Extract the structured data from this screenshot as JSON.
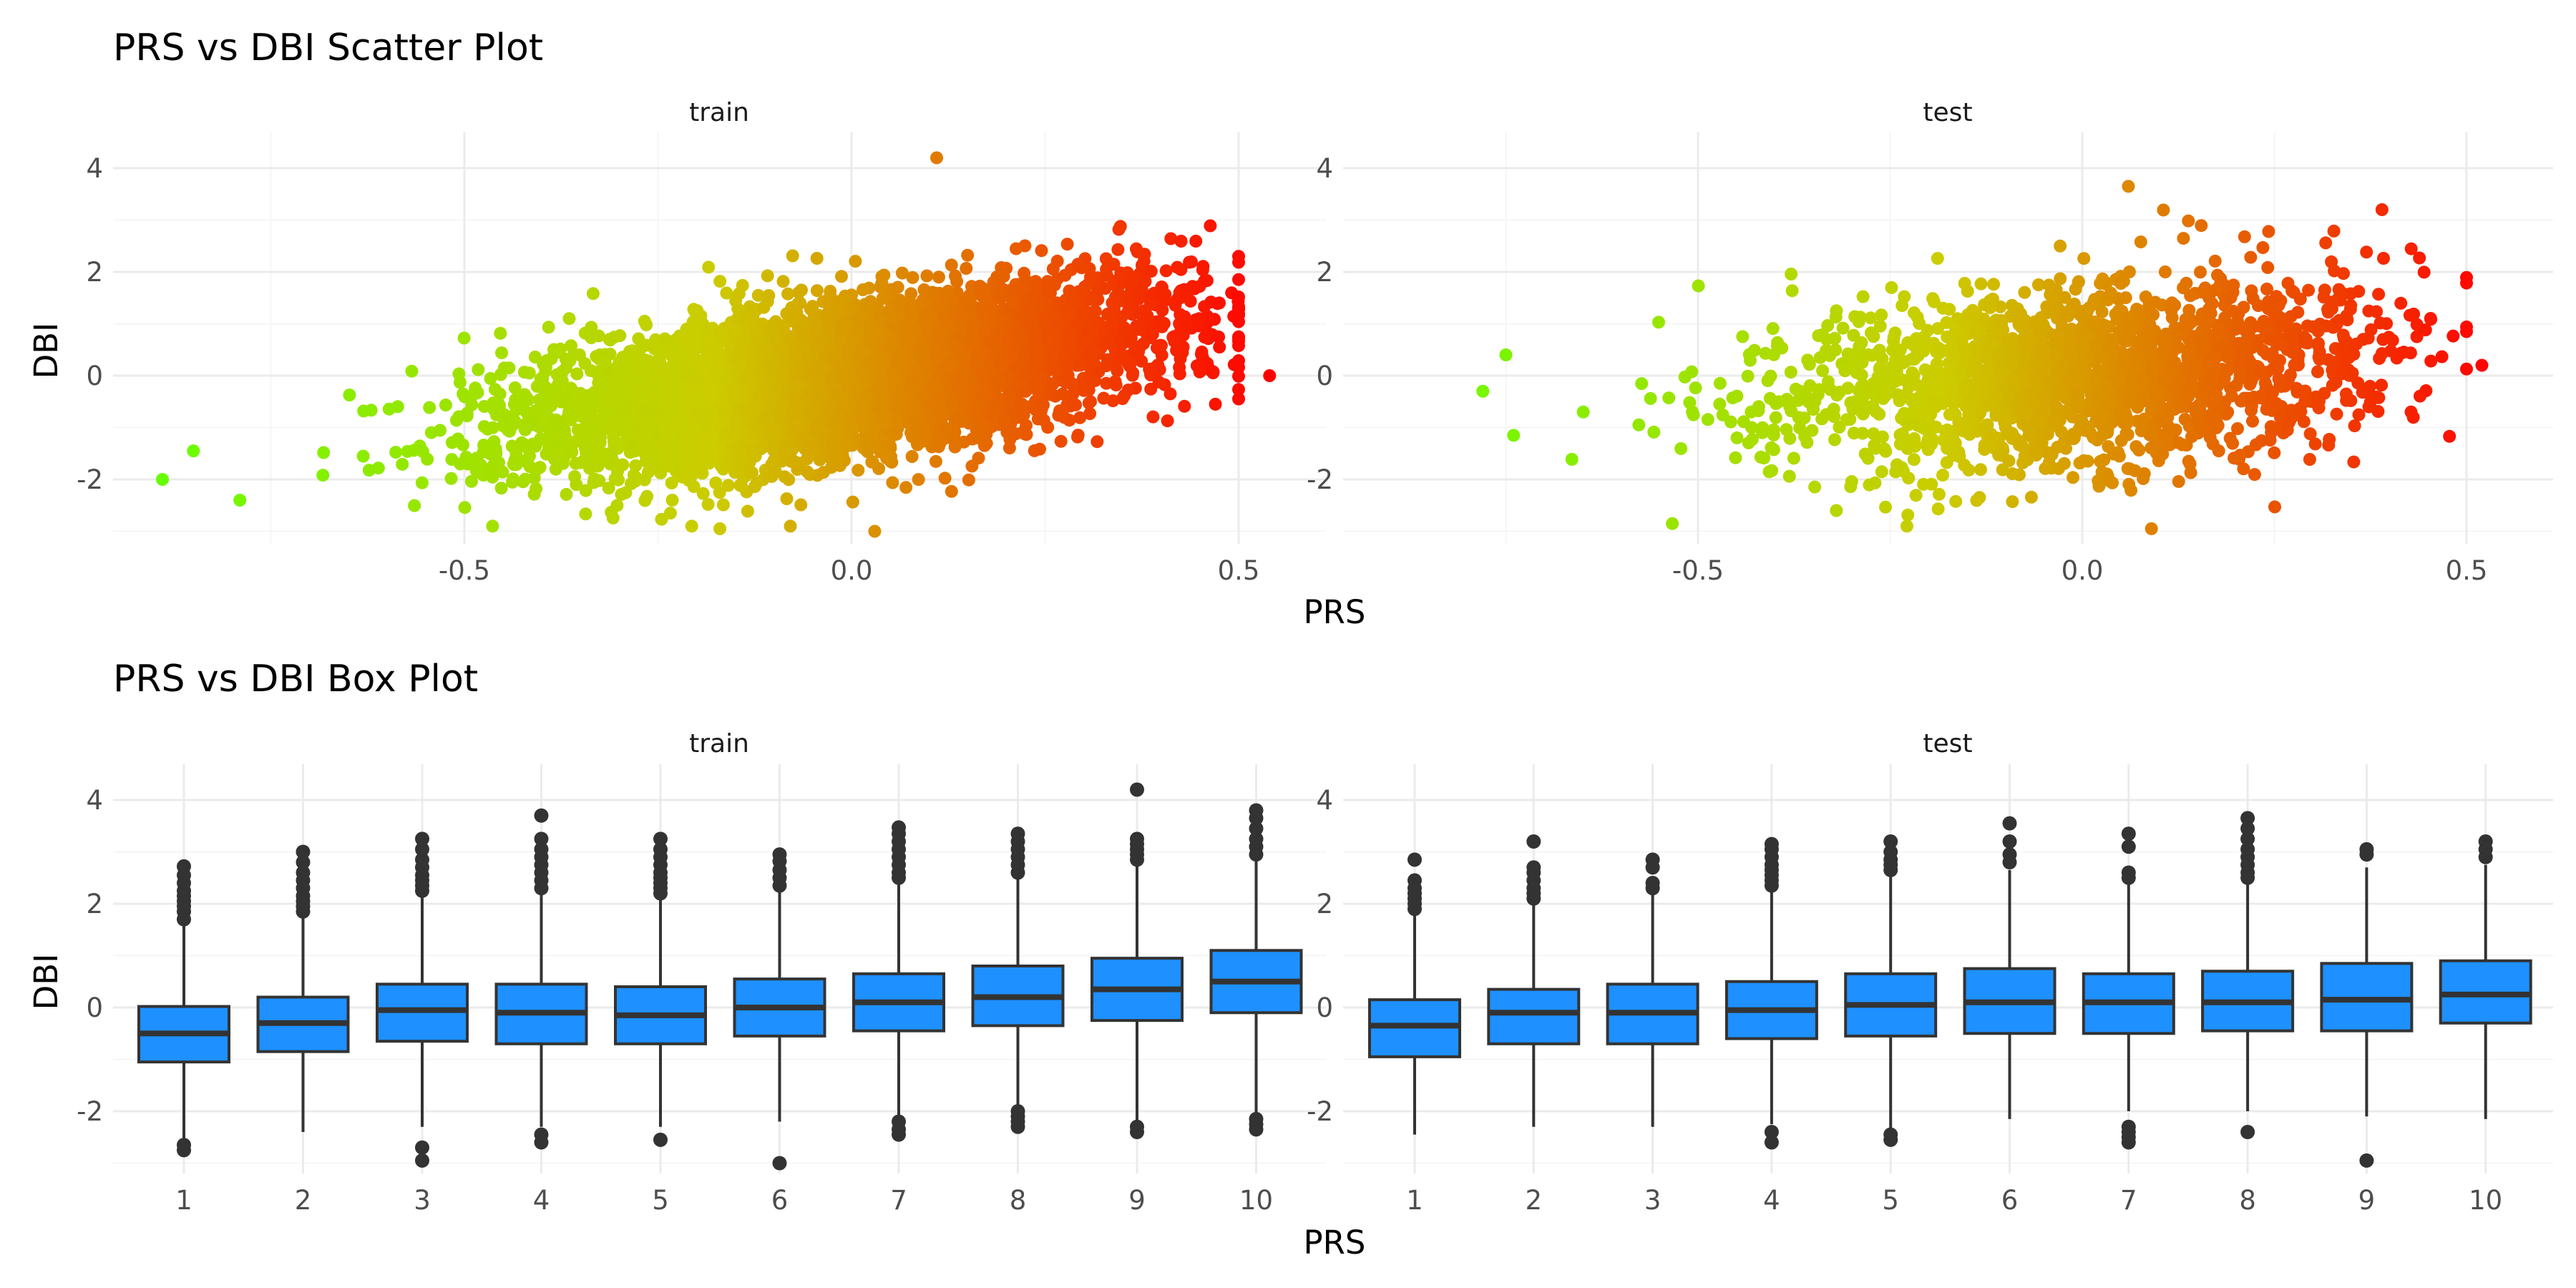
{
  "colors": {
    "low": "#66ff00",
    "mid": "#cccc00",
    "high": "#ff0000",
    "box_fill": "#1e90ff",
    "box_line": "#333333"
  },
  "chart_data": [
    {
      "type": "scatter",
      "title": "PRS vs DBI Scatter Plot",
      "xlabel": "PRS",
      "ylabel": "DBI",
      "xlim": [
        -0.95,
        0.62
      ],
      "ylim": [
        -3.4,
        4.6
      ],
      "xticks": [
        -0.5,
        0.0,
        0.5
      ],
      "xtick_labels": [
        "-0.5",
        "0.0",
        "0.5"
      ],
      "yticks": [
        -2,
        0,
        2,
        4
      ],
      "ytick_labels": [
        "-2",
        "0",
        "2",
        "4"
      ],
      "grid": true,
      "legend": "none",
      "color_by": "PRS",
      "panels": [
        {
          "name": "train",
          "approx_points": 5000,
          "x_mean": 0.0,
          "x_sd": 0.21,
          "slope": 2.2,
          "resid_sd": 0.75,
          "extremes": [
            [
              -0.89,
              -2.0
            ],
            [
              -0.85,
              -1.45
            ],
            [
              -0.79,
              -2.4
            ],
            [
              0.54,
              0.0
            ],
            [
              0.5,
              2.3
            ],
            [
              0.11,
              4.2
            ],
            [
              0.03,
              -3.0
            ],
            [
              -0.17,
              -2.95
            ],
            [
              0.47,
              -0.55
            ]
          ]
        },
        {
          "name": "test",
          "approx_points": 2000,
          "x_mean": 0.0,
          "x_sd": 0.2,
          "slope": 1.2,
          "resid_sd": 0.85,
          "extremes": [
            [
              -0.78,
              -0.3
            ],
            [
              -0.75,
              0.4
            ],
            [
              -0.74,
              -1.15
            ],
            [
              0.52,
              0.2
            ],
            [
              0.5,
              0.85
            ],
            [
              0.39,
              3.2
            ],
            [
              0.06,
              3.65
            ],
            [
              0.09,
              -2.95
            ],
            [
              -0.32,
              -2.6
            ]
          ]
        }
      ]
    },
    {
      "type": "box",
      "title": "PRS vs DBI Box Plot",
      "xlabel": "PRS",
      "ylabel": "DBI",
      "categories": [
        "1",
        "2",
        "3",
        "4",
        "5",
        "6",
        "7",
        "8",
        "9",
        "10"
      ],
      "ylim": [
        -3.4,
        4.6
      ],
      "yticks": [
        -2,
        0,
        2,
        4
      ],
      "ytick_labels": [
        "-2",
        "0",
        "2",
        "4"
      ],
      "grid": true,
      "panels": [
        {
          "name": "train",
          "boxes": [
            {
              "q1": -1.05,
              "median": -0.5,
              "q3": 0.02,
              "lo": -2.6,
              "hi": 1.6,
              "outliers": [
                -2.65,
                -2.75,
                1.7,
                1.85,
                1.95,
                2.05,
                2.15,
                2.25,
                2.4,
                2.55,
                2.72
              ]
            },
            {
              "q1": -0.85,
              "median": -0.3,
              "q3": 0.2,
              "lo": -2.4,
              "hi": 1.75,
              "outliers": [
                1.85,
                1.95,
                2.05,
                2.15,
                2.3,
                2.45,
                2.6,
                2.8,
                3.0
              ]
            },
            {
              "q1": -0.65,
              "median": -0.05,
              "q3": 0.45,
              "lo": -2.3,
              "hi": 2.2,
              "outliers": [
                -2.7,
                -2.95,
                2.25,
                2.35,
                2.45,
                2.55,
                2.7,
                2.85,
                3.05,
                3.25
              ]
            },
            {
              "q1": -0.7,
              "median": -0.1,
              "q3": 0.45,
              "lo": -2.3,
              "hi": 2.25,
              "outliers": [
                -2.45,
                -2.6,
                2.3,
                2.45,
                2.6,
                2.75,
                2.9,
                3.05,
                3.25,
                3.7
              ]
            },
            {
              "q1": -0.7,
              "median": -0.15,
              "q3": 0.4,
              "lo": -2.3,
              "hi": 2.1,
              "outliers": [
                -2.55,
                2.2,
                2.3,
                2.4,
                2.5,
                2.6,
                2.75,
                2.9,
                3.05,
                3.25
              ]
            },
            {
              "q1": -0.55,
              "median": 0.0,
              "q3": 0.55,
              "lo": -2.2,
              "hi": 2.25,
              "outliers": [
                -3.0,
                2.35,
                2.5,
                2.65,
                2.82,
                2.95
              ]
            },
            {
              "q1": -0.45,
              "median": 0.1,
              "q3": 0.65,
              "lo": -2.1,
              "hi": 2.4,
              "outliers": [
                -2.2,
                -2.35,
                -2.45,
                2.5,
                2.6,
                2.75,
                2.9,
                3.05,
                3.2,
                3.35,
                3.47
              ]
            },
            {
              "q1": -0.35,
              "median": 0.2,
              "q3": 0.8,
              "lo": -1.95,
              "hi": 2.5,
              "outliers": [
                -2.0,
                -2.1,
                -2.2,
                -2.3,
                2.6,
                2.75,
                2.9,
                3.05,
                3.2,
                3.35
              ]
            },
            {
              "q1": -0.25,
              "median": 0.35,
              "q3": 0.95,
              "lo": -2.2,
              "hi": 2.75,
              "outliers": [
                -2.3,
                -2.4,
                2.85,
                2.95,
                3.05,
                3.15,
                3.25,
                4.2
              ]
            },
            {
              "q1": -0.1,
              "median": 0.5,
              "q3": 1.1,
              "lo": -2.05,
              "hi": 2.85,
              "outliers": [
                -2.15,
                -2.25,
                -2.35,
                2.95,
                3.1,
                3.25,
                3.45,
                3.65,
                3.8
              ]
            }
          ]
        },
        {
          "name": "test",
          "boxes": [
            {
              "q1": -0.95,
              "median": -0.35,
              "q3": 0.15,
              "lo": -2.45,
              "hi": 1.8,
              "outliers": [
                1.9,
                2.0,
                2.1,
                2.2,
                2.3,
                2.45,
                2.85
              ]
            },
            {
              "q1": -0.7,
              "median": -0.1,
              "q3": 0.35,
              "lo": -2.3,
              "hi": 2.0,
              "outliers": [
                2.1,
                2.2,
                2.3,
                2.45,
                2.6,
                2.7,
                3.2
              ]
            },
            {
              "q1": -0.7,
              "median": -0.1,
              "q3": 0.45,
              "lo": -2.3,
              "hi": 2.2,
              "outliers": [
                2.3,
                2.4,
                2.7,
                2.85
              ]
            },
            {
              "q1": -0.6,
              "median": -0.05,
              "q3": 0.5,
              "lo": -2.25,
              "hi": 2.25,
              "outliers": [
                -2.4,
                -2.6,
                2.35,
                2.45,
                2.55,
                2.65,
                2.75,
                2.9,
                3.05,
                3.15
              ]
            },
            {
              "q1": -0.55,
              "median": 0.05,
              "q3": 0.65,
              "lo": -2.35,
              "hi": 2.6,
              "outliers": [
                -2.45,
                -2.55,
                2.65,
                2.75,
                2.85,
                3.0,
                3.2
              ]
            },
            {
              "q1": -0.5,
              "median": 0.1,
              "q3": 0.75,
              "lo": -2.15,
              "hi": 2.65,
              "outliers": [
                2.8,
                2.95,
                3.2,
                3.55
              ]
            },
            {
              "q1": -0.5,
              "median": 0.1,
              "q3": 0.65,
              "lo": -2.0,
              "hi": 2.4,
              "outliers": [
                -2.3,
                -2.4,
                -2.5,
                -2.6,
                2.5,
                2.6,
                3.1,
                3.35
              ]
            },
            {
              "q1": -0.45,
              "median": 0.1,
              "q3": 0.7,
              "lo": -2.0,
              "hi": 2.4,
              "outliers": [
                -2.4,
                2.5,
                2.6,
                2.75,
                2.9,
                3.05,
                3.25,
                3.45,
                3.65
              ]
            },
            {
              "q1": -0.45,
              "median": 0.15,
              "q3": 0.85,
              "lo": -2.1,
              "hi": 2.7,
              "outliers": [
                -2.95,
                2.95,
                3.05
              ]
            },
            {
              "q1": -0.3,
              "median": 0.25,
              "q3": 0.9,
              "lo": -2.15,
              "hi": 2.75,
              "outliers": [
                2.9,
                3.05,
                3.2
              ]
            }
          ]
        }
      ]
    }
  ]
}
